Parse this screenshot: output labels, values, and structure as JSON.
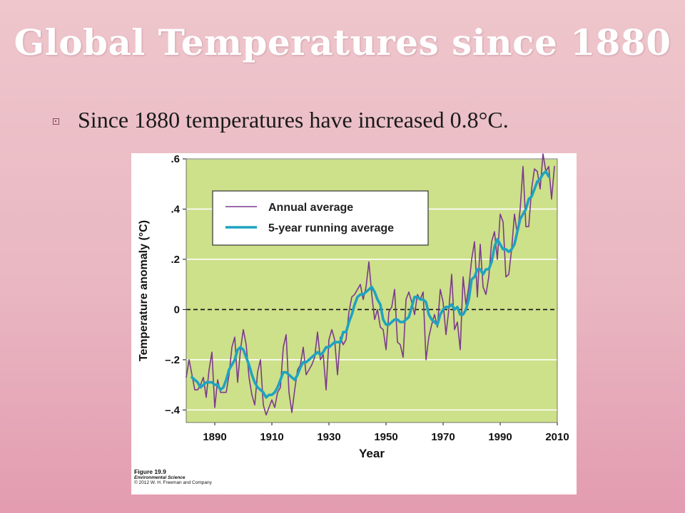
{
  "slide": {
    "title": "Global Temperatures since 1880",
    "bullet": "Since 1880 temperatures have increased 0.8°C."
  },
  "figure": {
    "caption_number": "Figure 19.9",
    "caption_book": "Environmental Science",
    "caption_credit": "© 2012 W. H. Freeman and Company"
  },
  "colors": {
    "plot_background": "#cde08a",
    "annual": "#7b3a8c",
    "running": "#1ea3c0"
  },
  "chart_data": {
    "type": "line",
    "xlabel": "Year",
    "ylabel": "Temperature anomaly (°C)",
    "xlim": [
      1880,
      2010
    ],
    "ylim": [
      -0.45,
      0.6
    ],
    "xticks": [
      1890,
      1910,
      1930,
      1950,
      1970,
      1990,
      2010
    ],
    "xtick_labels": [
      "1890",
      "1910",
      "1930",
      "1950",
      "1970",
      "1990",
      "2010"
    ],
    "yticks": [
      0.6,
      0.4,
      0.2,
      0,
      -0.2,
      -0.4
    ],
    "ytick_labels": [
      ".6",
      ".4",
      ".2",
      "0",
      "–.2",
      "–.4"
    ],
    "grid": "horizontal",
    "zero_line": "dashed",
    "legend_position": "top-left",
    "series": [
      {
        "name": "Annual average",
        "x": [
          1880,
          1881,
          1882,
          1883,
          1884,
          1885,
          1886,
          1887,
          1888,
          1889,
          1890,
          1891,
          1892,
          1893,
          1894,
          1895,
          1896,
          1897,
          1898,
          1899,
          1900,
          1901,
          1902,
          1903,
          1904,
          1905,
          1906,
          1907,
          1908,
          1909,
          1910,
          1911,
          1912,
          1913,
          1914,
          1915,
          1916,
          1917,
          1918,
          1919,
          1920,
          1921,
          1922,
          1923,
          1924,
          1925,
          1926,
          1927,
          1928,
          1929,
          1930,
          1931,
          1932,
          1933,
          1934,
          1935,
          1936,
          1937,
          1938,
          1939,
          1940,
          1941,
          1942,
          1943,
          1944,
          1945,
          1946,
          1947,
          1948,
          1949,
          1950,
          1951,
          1952,
          1953,
          1954,
          1955,
          1956,
          1957,
          1958,
          1959,
          1960,
          1961,
          1962,
          1963,
          1964,
          1965,
          1966,
          1967,
          1968,
          1969,
          1970,
          1971,
          1972,
          1973,
          1974,
          1975,
          1976,
          1977,
          1978,
          1979,
          1980,
          1981,
          1982,
          1983,
          1984,
          1985,
          1986,
          1987,
          1988,
          1989,
          1990,
          1991,
          1992,
          1993,
          1994,
          1995,
          1996,
          1997,
          1998,
          1999,
          2000,
          2001,
          2002,
          2003,
          2004,
          2005,
          2006,
          2007,
          2008,
          2009
        ],
        "y": [
          -0.27,
          -0.2,
          -0.26,
          -0.32,
          -0.32,
          -0.3,
          -0.27,
          -0.35,
          -0.24,
          -0.17,
          -0.39,
          -0.28,
          -0.33,
          -0.33,
          -0.33,
          -0.26,
          -0.15,
          -0.11,
          -0.29,
          -0.16,
          -0.08,
          -0.14,
          -0.27,
          -0.34,
          -0.38,
          -0.25,
          -0.2,
          -0.38,
          -0.42,
          -0.39,
          -0.36,
          -0.39,
          -0.33,
          -0.31,
          -0.15,
          -0.1,
          -0.33,
          -0.41,
          -0.32,
          -0.24,
          -0.22,
          -0.15,
          -0.26,
          -0.24,
          -0.22,
          -0.19,
          -0.09,
          -0.2,
          -0.18,
          -0.32,
          -0.12,
          -0.08,
          -0.12,
          -0.26,
          -0.11,
          -0.14,
          -0.12,
          -0.01,
          0.05,
          0.06,
          0.08,
          0.1,
          0.04,
          0.09,
          0.19,
          0.06,
          -0.04,
          0.0,
          -0.07,
          -0.08,
          -0.16,
          -0.01,
          0.01,
          0.08,
          -0.13,
          -0.14,
          -0.19,
          0.04,
          0.07,
          0.03,
          -0.02,
          0.06,
          0.04,
          0.07,
          -0.2,
          -0.11,
          -0.06,
          -0.02,
          -0.07,
          0.08,
          0.03,
          -0.1,
          0.0,
          0.14,
          -0.08,
          -0.05,
          -0.16,
          0.13,
          0.02,
          0.09,
          0.2,
          0.27,
          0.05,
          0.26,
          0.09,
          0.06,
          0.13,
          0.27,
          0.31,
          0.2,
          0.38,
          0.35,
          0.13,
          0.14,
          0.24,
          0.38,
          0.3,
          0.4,
          0.57,
          0.33,
          0.33,
          0.48,
          0.56,
          0.55,
          0.48,
          0.62,
          0.55,
          0.57,
          0.44,
          0.57
        ]
      },
      {
        "name": "5-year running average",
        "x": [
          1882,
          1883,
          1884,
          1885,
          1886,
          1887,
          1888,
          1889,
          1890,
          1891,
          1892,
          1893,
          1894,
          1895,
          1896,
          1897,
          1898,
          1899,
          1900,
          1901,
          1902,
          1903,
          1904,
          1905,
          1906,
          1907,
          1908,
          1909,
          1910,
          1911,
          1912,
          1913,
          1914,
          1915,
          1916,
          1917,
          1918,
          1919,
          1920,
          1921,
          1922,
          1923,
          1924,
          1925,
          1926,
          1927,
          1928,
          1929,
          1930,
          1931,
          1932,
          1933,
          1934,
          1935,
          1936,
          1937,
          1938,
          1939,
          1940,
          1941,
          1942,
          1943,
          1944,
          1945,
          1946,
          1947,
          1948,
          1949,
          1950,
          1951,
          1952,
          1953,
          1954,
          1955,
          1956,
          1957,
          1958,
          1959,
          1960,
          1961,
          1962,
          1963,
          1964,
          1965,
          1966,
          1967,
          1968,
          1969,
          1970,
          1971,
          1972,
          1973,
          1974,
          1975,
          1976,
          1977,
          1978,
          1979,
          1980,
          1981,
          1982,
          1983,
          1984,
          1985,
          1986,
          1987,
          1988,
          1989,
          1990,
          1991,
          1992,
          1993,
          1994,
          1995,
          1996,
          1997,
          1998,
          1999,
          2000,
          2001,
          2002,
          2003,
          2004,
          2005,
          2006,
          2007
        ],
        "y": [
          -0.27,
          -0.28,
          -0.29,
          -0.31,
          -0.3,
          -0.29,
          -0.29,
          -0.29,
          -0.3,
          -0.3,
          -0.32,
          -0.31,
          -0.28,
          -0.24,
          -0.22,
          -0.2,
          -0.16,
          -0.15,
          -0.16,
          -0.19,
          -0.22,
          -0.26,
          -0.29,
          -0.31,
          -0.32,
          -0.33,
          -0.35,
          -0.34,
          -0.34,
          -0.33,
          -0.31,
          -0.28,
          -0.25,
          -0.25,
          -0.26,
          -0.27,
          -0.28,
          -0.26,
          -0.23,
          -0.21,
          -0.21,
          -0.2,
          -0.19,
          -0.18,
          -0.17,
          -0.18,
          -0.17,
          -0.15,
          -0.15,
          -0.14,
          -0.13,
          -0.13,
          -0.13,
          -0.09,
          -0.09,
          -0.05,
          -0.02,
          0.02,
          0.05,
          0.06,
          0.06,
          0.07,
          0.08,
          0.09,
          0.07,
          0.04,
          0.02,
          -0.04,
          -0.06,
          -0.06,
          -0.05,
          -0.04,
          -0.04,
          -0.05,
          -0.05,
          -0.04,
          -0.03,
          0.01,
          0.05,
          0.05,
          0.04,
          0.04,
          0.03,
          -0.02,
          -0.04,
          -0.05,
          -0.06,
          -0.02,
          0.0,
          0.01,
          0.01,
          0.02,
          0.0,
          0.01,
          -0.02,
          -0.02,
          0.0,
          0.04,
          0.12,
          0.13,
          0.16,
          0.16,
          0.14,
          0.16,
          0.16,
          0.19,
          0.25,
          0.28,
          0.26,
          0.24,
          0.24,
          0.23,
          0.24,
          0.26,
          0.31,
          0.36,
          0.38,
          0.4,
          0.44,
          0.45,
          0.48,
          0.51,
          0.52,
          0.54,
          0.55,
          0.53
        ]
      }
    ]
  }
}
